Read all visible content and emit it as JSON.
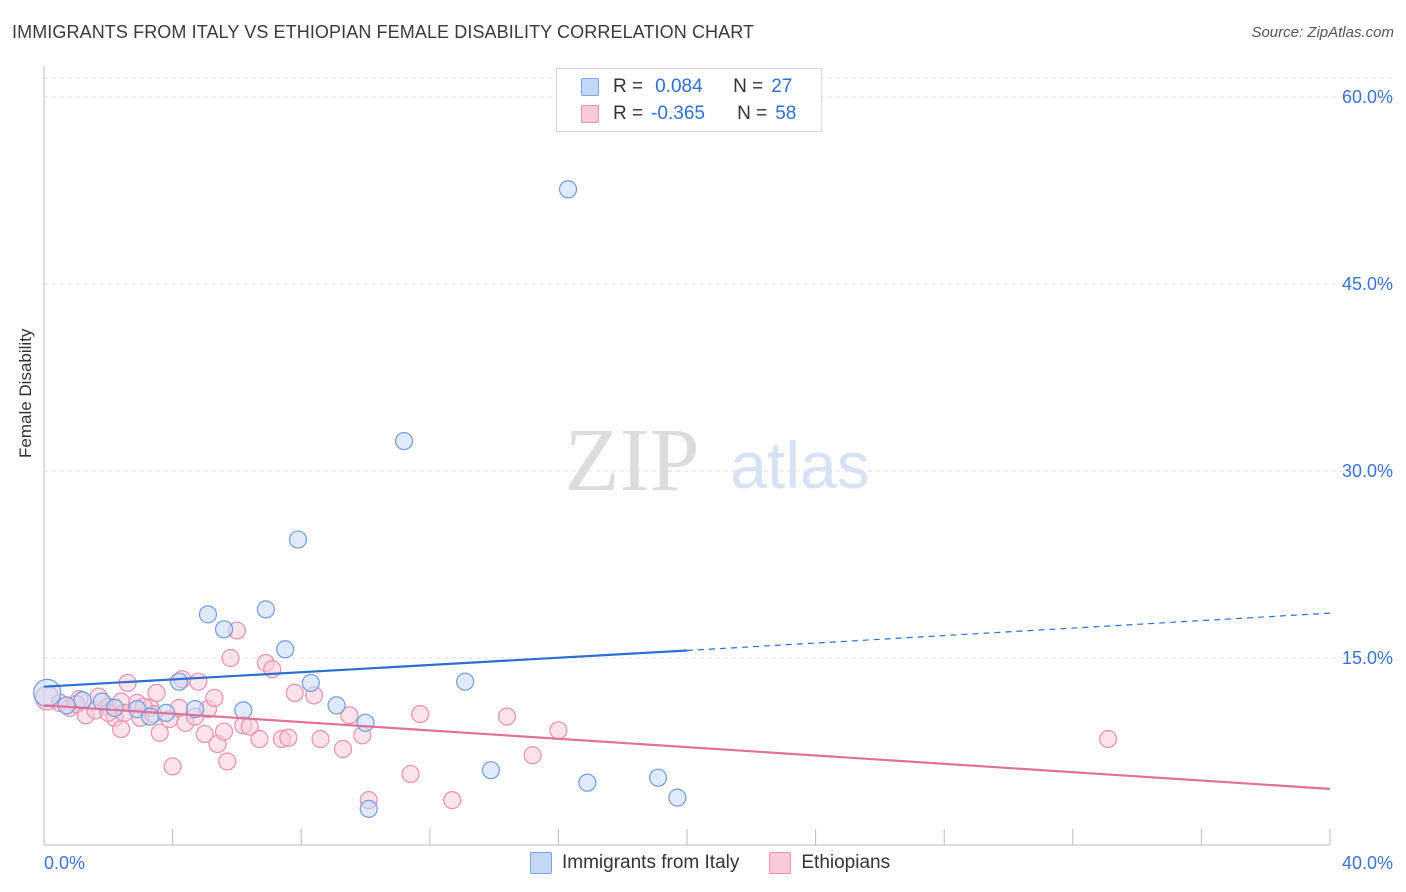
{
  "title": "IMMIGRANTS FROM ITALY VS ETHIOPIAN FEMALE DISABILITY CORRELATION CHART",
  "source": "Source: ZipAtlas.com",
  "watermark": {
    "zip": "ZIP",
    "atlas": "atlas"
  },
  "legend": {
    "rows": [
      {
        "r_label": "R =",
        "r_value": "0.084",
        "n_label": "N =",
        "n_value": "27"
      },
      {
        "r_label": "R =",
        "r_value": "-0.365",
        "n_label": "N =",
        "n_value": "58"
      }
    ]
  },
  "bottom_legend": {
    "series1": "Immigrants from Italy",
    "series2": "Ethiopians"
  },
  "colors": {
    "blue_fill": "#c4d8f6",
    "blue_stroke": "#6f9be0",
    "blue_line": "#2a6fd1",
    "pink_fill": "#f9cad8",
    "pink_stroke": "#ea8fae",
    "pink_line": "#e07099",
    "tick_label": "#3b74d0",
    "grid": "#dddddd"
  },
  "chart_data": {
    "type": "scatter",
    "title": "IMMIGRANTS FROM ITALY VS ETHIOPIAN FEMALE DISABILITY CORRELATION CHART",
    "xlabel": "",
    "ylabel": "Female Disability",
    "xlim": [
      0,
      40
    ],
    "ylim": [
      0,
      60
    ],
    "x_tick_labels": [
      "0.0%",
      "40.0%"
    ],
    "y_ticks": [
      {
        "value": 15,
        "label": "15.0%"
      },
      {
        "value": 30,
        "label": "30.0%"
      },
      {
        "value": 45,
        "label": "45.0%"
      },
      {
        "value": 60,
        "label": "60.0%"
      }
    ],
    "series": [
      {
        "name": "Immigrants from Italy",
        "color": "blue",
        "r": 0.084,
        "n": 27,
        "trend": {
          "x0": 0,
          "y0": 12.7,
          "x1": 20,
          "y1": 15.6,
          "dash_x1": 40,
          "dash_y1": 18.6
        },
        "points": [
          [
            0.1,
            12.2,
            1.6
          ],
          [
            0.7,
            11.2,
            1
          ],
          [
            1.2,
            11.6,
            1
          ],
          [
            1.8,
            11.5,
            1
          ],
          [
            2.2,
            11.0,
            1
          ],
          [
            2.9,
            10.9,
            1
          ],
          [
            3.3,
            10.3,
            1
          ],
          [
            3.8,
            10.6,
            1
          ],
          [
            4.2,
            13.1,
            1
          ],
          [
            4.7,
            10.9,
            1
          ],
          [
            5.1,
            18.5,
            1
          ],
          [
            5.6,
            17.3,
            1
          ],
          [
            6.2,
            10.8,
            1
          ],
          [
            6.9,
            18.9,
            1
          ],
          [
            7.5,
            15.7,
            1
          ],
          [
            7.9,
            24.5,
            1
          ],
          [
            8.3,
            13.0,
            1
          ],
          [
            9.1,
            11.2,
            1
          ],
          [
            10.0,
            9.8,
            1
          ],
          [
            11.2,
            32.4,
            1
          ],
          [
            13.1,
            13.1,
            1
          ],
          [
            13.9,
            6.0,
            1
          ],
          [
            16.3,
            52.6,
            1
          ],
          [
            16.9,
            5.0,
            1
          ],
          [
            19.1,
            5.4,
            1
          ],
          [
            19.7,
            3.8,
            1
          ],
          [
            10.1,
            2.9,
            1
          ]
        ]
      },
      {
        "name": "Ethiopians",
        "color": "pink",
        "r": -0.365,
        "n": 58,
        "trend": {
          "x0": 0,
          "y0": 11.2,
          "x1": 40,
          "y1": 4.5
        },
        "points": [
          [
            0.1,
            11.8,
            1.4
          ],
          [
            0.5,
            11.4,
            1
          ],
          [
            0.8,
            11.0,
            1
          ],
          [
            1.1,
            11.7,
            1
          ],
          [
            1.3,
            10.4,
            1
          ],
          [
            1.6,
            10.8,
            1
          ],
          [
            1.7,
            11.9,
            1
          ],
          [
            2.0,
            11.1,
            1
          ],
          [
            2.2,
            10.2,
            1
          ],
          [
            2.4,
            11.5,
            1
          ],
          [
            2.5,
            10.6,
            1
          ],
          [
            2.4,
            9.3,
            1
          ],
          [
            2.6,
            13.0,
            1
          ],
          [
            2.9,
            11.4,
            1
          ],
          [
            3.0,
            10.2,
            1
          ],
          [
            3.3,
            11.0,
            1
          ],
          [
            3.4,
            10.5,
            1
          ],
          [
            3.5,
            12.2,
            1
          ],
          [
            3.6,
            9.0,
            1
          ],
          [
            3.9,
            10.1,
            1
          ],
          [
            4.0,
            6.3,
            1
          ],
          [
            4.2,
            11.0,
            1
          ],
          [
            4.3,
            13.3,
            1
          ],
          [
            4.4,
            9.8,
            1
          ],
          [
            4.7,
            10.3,
            1
          ],
          [
            4.8,
            13.1,
            1
          ],
          [
            5.0,
            8.9,
            1
          ],
          [
            5.1,
            10.9,
            1
          ],
          [
            5.3,
            11.8,
            1
          ],
          [
            5.4,
            8.1,
            1
          ],
          [
            5.6,
            9.1,
            1
          ],
          [
            5.7,
            6.7,
            1
          ],
          [
            5.8,
            15.0,
            1
          ],
          [
            6.0,
            17.2,
            1
          ],
          [
            6.2,
            9.6,
            1
          ],
          [
            6.4,
            9.5,
            1
          ],
          [
            6.7,
            8.5,
            1
          ],
          [
            6.9,
            14.6,
            1
          ],
          [
            7.1,
            14.1,
            1
          ],
          [
            7.4,
            8.5,
            1
          ],
          [
            7.6,
            8.6,
            1
          ],
          [
            7.8,
            12.2,
            1
          ],
          [
            8.4,
            12.0,
            1
          ],
          [
            8.6,
            8.5,
            1
          ],
          [
            9.3,
            7.7,
            1
          ],
          [
            9.5,
            10.4,
            1
          ],
          [
            9.9,
            8.8,
            1
          ],
          [
            10.1,
            3.6,
            1
          ],
          [
            11.4,
            5.7,
            1
          ],
          [
            11.7,
            10.5,
            1
          ],
          [
            12.7,
            3.6,
            1
          ],
          [
            14.4,
            10.3,
            1
          ],
          [
            15.2,
            7.2,
            1
          ],
          [
            16.0,
            9.2,
            1
          ],
          [
            33.1,
            8.5,
            1
          ],
          [
            2.0,
            10.6,
            1
          ],
          [
            1.0,
            11.3,
            1
          ],
          [
            3.1,
            11.1,
            1
          ]
        ]
      }
    ]
  }
}
